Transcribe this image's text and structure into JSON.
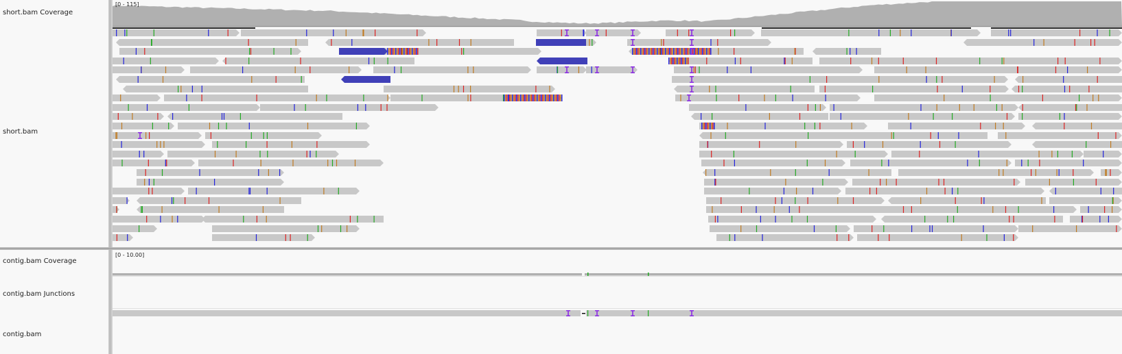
{
  "tracks": [
    {
      "id": "short-coverage",
      "name": "short.bam Coverage"
    },
    {
      "id": "short-alignments",
      "name": "short.bam"
    },
    {
      "id": "contig-coverage",
      "name": "contig.bam Coverage"
    },
    {
      "id": "contig-junctions",
      "name": "contig.bam Junctions"
    },
    {
      "id": "contig-alignments",
      "name": "contig.bam"
    }
  ],
  "short_coverage": {
    "range_label": "[0 - 115]"
  },
  "contig_coverage": {
    "range_label": "[0 - 10.00]"
  },
  "colors": {
    "read": "#c8c8c8",
    "coverage": "#b0b0b0",
    "insertion": "#8a2be2",
    "softclip_blue": "#4040b8",
    "mismatch_a": "#22aa22",
    "mismatch_c": "#2222dd",
    "mismatch_g": "#c07a20",
    "mismatch_t": "#dd2222"
  }
}
